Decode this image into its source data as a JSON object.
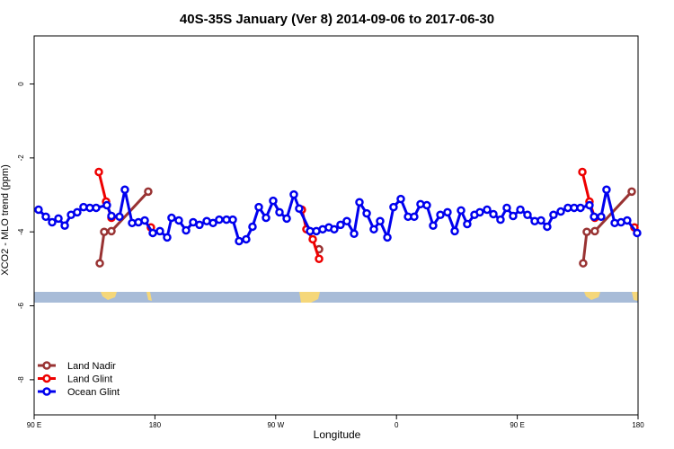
{
  "chart_data": {
    "type": "line",
    "title": "40S-35S January (Ver 8)   2014-09-06 to 2017-06-30",
    "x_label": "Longitude",
    "y_label": "XCO2 - MLO trend (ppm)",
    "xlim": [
      90,
      540
    ],
    "ylim": [
      -8.95,
      1.3
    ],
    "xticks": [
      {
        "value": 90,
        "label": "90 E"
      },
      180,
      {
        "value": 270,
        "label": "90 W"
      },
      {
        "value": 360,
        "label": "0"
      },
      {
        "value": 450,
        "label": "90 E"
      },
      {
        "value": 540,
        "label": "180"
      }
    ],
    "yticks": [
      -8,
      -6,
      -4,
      -2,
      0
    ],
    "legend": "bottom-left",
    "series": [
      {
        "name": "Land Nadir",
        "color": "#993333",
        "x": [
          138.9,
          142.2,
          147.6,
          175.0,
          240,
          302.3,
          400,
          499.1,
          501.8,
          507.8,
          535.3
        ],
        "values": [
          -4.85,
          -4.0,
          -3.98,
          -2.91,
          null,
          -4.47,
          null,
          -4.85,
          -4.0,
          -3.98,
          -2.91
        ]
      },
      {
        "name": "Land Glint",
        "color": "#ee0000",
        "x": [
          138.2,
          143.6,
          147.6,
          160,
          177.0,
          240,
          289.5,
          292.9,
          297.6,
          302.3,
          400,
          498.5,
          503.8,
          507.8,
          520,
          537.3
        ],
        "values": [
          -2.38,
          -3.18,
          -3.62,
          null,
          -3.88,
          null,
          -3.4,
          -3.93,
          -4.2,
          -4.73,
          null,
          -2.38,
          -3.18,
          -3.62,
          null,
          -3.88
        ]
      },
      {
        "name": "Ocean Glint",
        "color": "#0000ee",
        "x": [
          93.3,
          98.7,
          103.4,
          108.1,
          112.8,
          117.5,
          122.1,
          126.8,
          131.5,
          136.2,
          144.2,
          147.6,
          153.6,
          157.6,
          163.0,
          167.7,
          172.4,
          178.4,
          183.7,
          189.1,
          192.4,
          197.8,
          203.2,
          208.5,
          213.2,
          218.6,
          223.3,
          227.9,
          233.3,
          238.0,
          242.7,
          248.0,
          252.7,
          257.4,
          262.8,
          268.1,
          272.8,
          278.2,
          283.5,
          287.5,
          295.6,
          300.3,
          305.0,
          309.6,
          313.6,
          318.3,
          323.0,
          328.4,
          332.4,
          337.8,
          343.1,
          347.8,
          353.2,
          357.8,
          363.2,
          368.6,
          373.2,
          377.9,
          382.6,
          387.3,
          392.7,
          398.0,
          403.4,
          408.1,
          412.7,
          418.1,
          422.1,
          427.5,
          432.2,
          437.5,
          442.2,
          446.9,
          452.3,
          457.6,
          463.0,
          467.7,
          472.3,
          477.0,
          482.4,
          487.7,
          492.4,
          497.1,
          503.8,
          507.2,
          512.5,
          516.5,
          522.6,
          527.3,
          531.9,
          539.3
        ],
        "values": [
          -3.4,
          -3.59,
          -3.74,
          -3.64,
          -3.83,
          -3.54,
          -3.47,
          -3.33,
          -3.35,
          -3.35,
          -3.28,
          -3.57,
          -3.59,
          -2.86,
          -3.76,
          -3.74,
          -3.69,
          -4.03,
          -3.98,
          -4.15,
          -3.62,
          -3.69,
          -3.96,
          -3.74,
          -3.81,
          -3.71,
          -3.76,
          -3.67,
          -3.67,
          -3.67,
          -4.25,
          -4.2,
          -3.86,
          -3.33,
          -3.62,
          -3.16,
          -3.47,
          -3.64,
          -2.99,
          -3.37,
          -3.98,
          -3.98,
          -3.93,
          -3.88,
          -3.93,
          -3.81,
          -3.71,
          -4.05,
          -3.2,
          -3.5,
          -3.93,
          -3.71,
          -4.15,
          -3.33,
          -3.11,
          -3.59,
          -3.59,
          -3.25,
          -3.28,
          -3.83,
          -3.54,
          -3.47,
          -3.98,
          -3.42,
          -3.79,
          -3.54,
          -3.47,
          -3.4,
          -3.52,
          -3.67,
          -3.35,
          -3.57,
          -3.4,
          -3.54,
          -3.71,
          -3.69,
          -3.86,
          -3.54,
          -3.45,
          -3.35,
          -3.35,
          -3.35,
          -3.28,
          -3.59,
          -3.59,
          -2.86,
          -3.76,
          -3.74,
          -3.69,
          -4.03
        ]
      }
    ]
  }
}
